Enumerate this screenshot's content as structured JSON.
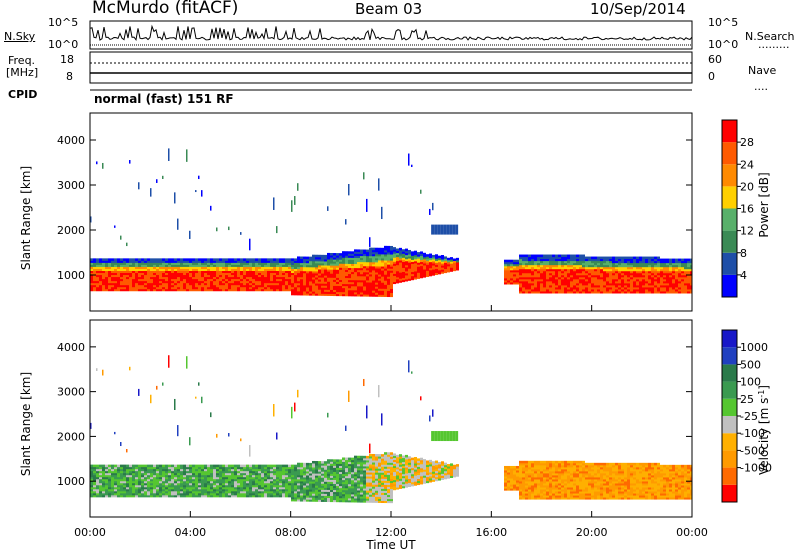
{
  "header": {
    "station": "McMurdo (fitACF)",
    "beam": "Beam 03",
    "date": "10/Sep/2014"
  },
  "sidebar_labels": {
    "nsky": "N.Sky",
    "freq_line1": "Freq.",
    "freq_line2": "[MHz]",
    "cpid": "CPID",
    "nsearch": "N.Search",
    "nave": "Nave"
  },
  "strip_ticks": {
    "nsky_top": "10^5",
    "nsky_bottom": "10^0",
    "nsearch_top": "10^5",
    "nsearch_bottom": "10^0",
    "freq_top": "18",
    "freq_bottom": "8",
    "nave_top": "60",
    "nave_bottom": "0"
  },
  "cpid_text": "normal (fast) 151 RF",
  "colors": {
    "power_scale": [
      "#0000ff",
      "#1e4fa8",
      "#3a8a55",
      "#58b06a",
      "#ffd000",
      "#ff8a00",
      "#ff5a00",
      "#ff0000"
    ],
    "velocity_scale": [
      "#ff0000",
      "#ff6a00",
      "#ff9a00",
      "#ffb000",
      "#c0c0c0",
      "#55c630",
      "#3a9a50",
      "#2a7a4a",
      "#2040c0",
      "#1818c8"
    ],
    "frame": "#000000"
  },
  "chart_data": [
    {
      "type": "heatmap",
      "panel": "power",
      "ylabel": "Slant Range [km]",
      "yticks": [
        "1000",
        "2000",
        "3000",
        "4000"
      ],
      "ylim": [
        200,
        4600
      ],
      "colorbar_label": "Power [dB]",
      "colorbar_ticks": [
        "4",
        "8",
        "12",
        "16",
        "20",
        "24",
        "28"
      ],
      "colorbar_range": [
        0,
        32
      ]
    },
    {
      "type": "heatmap",
      "panel": "velocity",
      "ylabel": "Slant Range [km]",
      "yticks": [
        "1000",
        "2000",
        "3000",
        "4000"
      ],
      "ylim": [
        200,
        4600
      ],
      "colorbar_label": "Velocity [m s^-1]",
      "colorbar_ticks": [
        "1000",
        "500",
        "100",
        "25",
        "-25",
        "-100",
        "-500",
        "-1000"
      ]
    }
  ],
  "xaxis": {
    "ticks": [
      "00:00",
      "04:00",
      "08:00",
      "12:00",
      "16:00",
      "20:00",
      "00:00"
    ],
    "label": "Time UT"
  }
}
